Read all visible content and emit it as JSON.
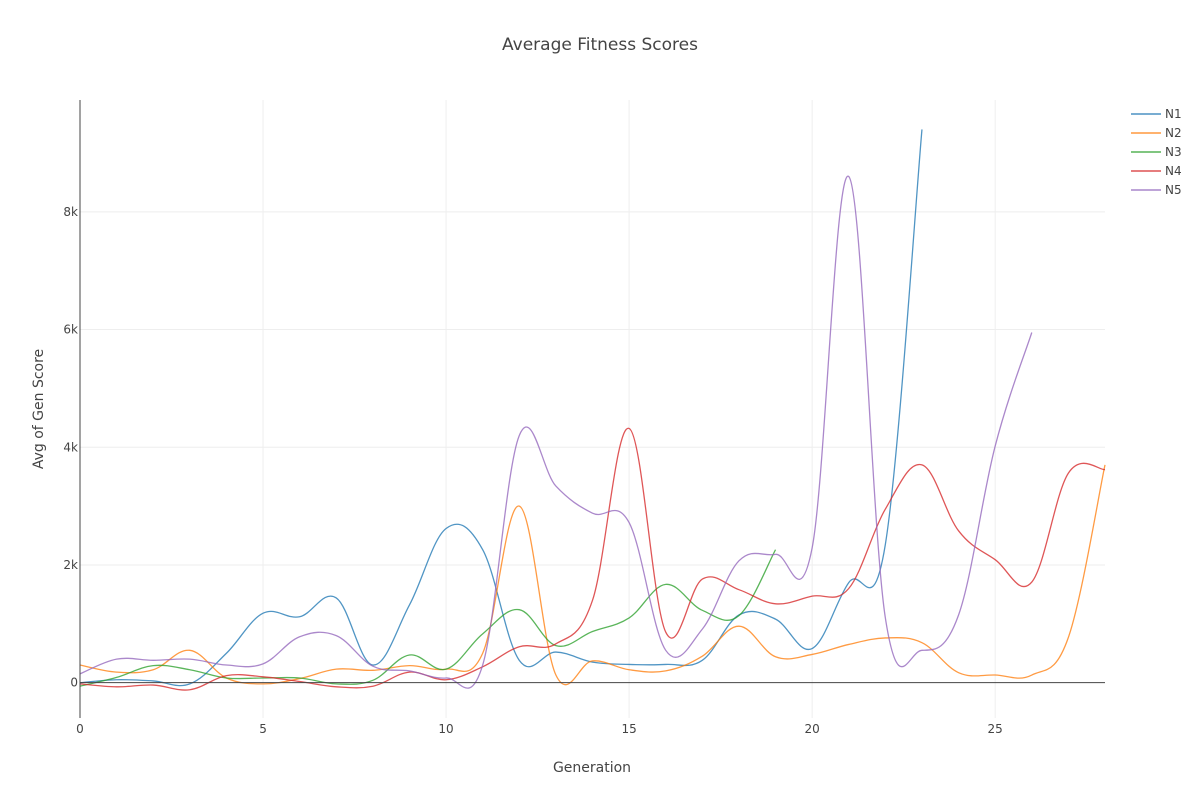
{
  "chart_data": {
    "type": "line",
    "title": "Average Fitness Scores",
    "xlabel": "Generation",
    "ylabel": "Avg of Gen Score",
    "xlim": [
      0,
      28
    ],
    "ylim": [
      -600,
      9900
    ],
    "xticks": [
      0,
      5,
      10,
      15,
      20,
      25
    ],
    "xtick_labels": [
      "0",
      "5",
      "10",
      "15",
      "20",
      "25"
    ],
    "yticks": [
      0,
      2000,
      4000,
      6000,
      8000
    ],
    "ytick_labels": [
      "0",
      "2k",
      "4k",
      "6k",
      "8k"
    ],
    "grid": true,
    "legend_position": "top-right",
    "series": [
      {
        "name": "N1",
        "color": "#1f77b4",
        "x": [
          0,
          1,
          2,
          3,
          4,
          5,
          6,
          7,
          8,
          9,
          10,
          11,
          12,
          13,
          14,
          15,
          16,
          17,
          18,
          19,
          20,
          21,
          22,
          23
        ],
        "y": [
          0,
          50,
          30,
          -20,
          500,
          1180,
          1120,
          1440,
          300,
          1320,
          2620,
          2260,
          380,
          520,
          350,
          310,
          310,
          380,
          1150,
          1080,
          580,
          1700,
          2350,
          9400
        ]
      },
      {
        "name": "N2",
        "color": "#ff7f0e",
        "x": [
          0,
          1,
          2,
          3,
          4,
          5,
          6,
          7,
          8,
          9,
          10,
          11,
          12,
          13,
          14,
          15,
          16,
          17,
          18,
          19,
          20,
          21,
          22,
          23,
          24,
          25,
          26,
          27,
          28
        ],
        "y": [
          300,
          180,
          220,
          550,
          80,
          -20,
          70,
          230,
          210,
          290,
          230,
          500,
          3000,
          130,
          370,
          220,
          200,
          450,
          960,
          440,
          480,
          650,
          760,
          680,
          170,
          130,
          130,
          770,
          3700
        ]
      },
      {
        "name": "N3",
        "color": "#2ca02c",
        "x": [
          0,
          1,
          2,
          3,
          4,
          5,
          6,
          7,
          8,
          9,
          10,
          11,
          12,
          13,
          14,
          15,
          16,
          17,
          18,
          19
        ],
        "y": [
          -60,
          90,
          290,
          220,
          80,
          80,
          80,
          -20,
          40,
          470,
          230,
          830,
          1240,
          630,
          870,
          1100,
          1670,
          1230,
          1140,
          2260
        ]
      },
      {
        "name": "N4",
        "color": "#d62728",
        "x": [
          0,
          1,
          2,
          3,
          4,
          5,
          6,
          7,
          8,
          9,
          10,
          11,
          12,
          13,
          14,
          15,
          16,
          17,
          18,
          19,
          20,
          21,
          22,
          23,
          24,
          25,
          26,
          27,
          28
        ],
        "y": [
          -20,
          -70,
          -40,
          -120,
          120,
          100,
          20,
          -70,
          -60,
          180,
          50,
          270,
          610,
          660,
          1400,
          4320,
          860,
          1760,
          1580,
          1340,
          1470,
          1600,
          2950,
          3700,
          2580,
          2090,
          1710,
          3560,
          3620
        ]
      },
      {
        "name": "N5",
        "color": "#9467bd",
        "x": [
          0,
          1,
          2,
          3,
          4,
          5,
          6,
          7,
          8,
          9,
          10,
          11,
          12,
          13,
          14,
          15,
          16,
          17,
          18,
          19,
          20,
          21,
          22,
          23,
          24,
          25,
          26
        ],
        "y": [
          150,
          400,
          380,
          400,
          300,
          320,
          780,
          800,
          280,
          200,
          80,
          300,
          4200,
          3340,
          2880,
          2720,
          550,
          910,
          2070,
          2180,
          2290,
          8600,
          1100,
          550,
          1150,
          4020,
          5950
        ]
      }
    ]
  }
}
